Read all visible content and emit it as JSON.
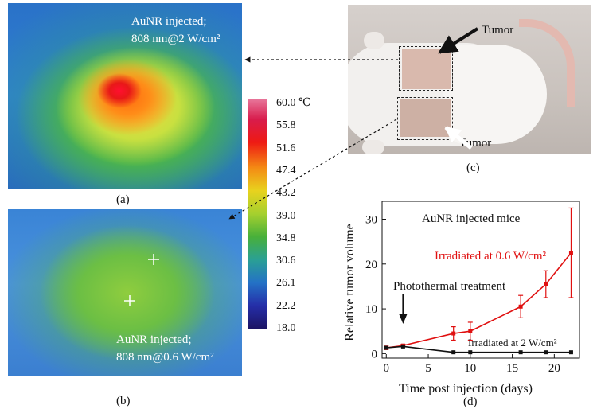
{
  "panel_a": {
    "label": "(a)",
    "text_line1": "AuNR injected;",
    "text_line2": "808 nm@2 W/cm²"
  },
  "panel_b": {
    "label": "(b)",
    "text_line1": "AuNR injected;",
    "text_line2": "808 nm@0.6 W/cm²"
  },
  "colorbar": {
    "ticks": [
      "60.0 ℃",
      "55.8",
      "51.6",
      "47.4",
      "43.2",
      "39.0",
      "34.8",
      "30.6",
      "26.1",
      "22.2",
      "18.0"
    ]
  },
  "panel_c": {
    "label": "(c)",
    "tumor_top": "Tumor",
    "tumor_bottom": "Tumor"
  },
  "panel_d": {
    "label": "(d)"
  },
  "chart_data": {
    "type": "line",
    "title": "AuNR injected mice",
    "xlabel": "Time post injection (days)",
    "ylabel": "Relative tumor volume",
    "xlim": [
      -0.5,
      23
    ],
    "ylim": [
      -1,
      34
    ],
    "xticks": [
      0,
      5,
      10,
      15,
      20
    ],
    "yticks": [
      0,
      10,
      20,
      30
    ],
    "annotation": "Photothermal treatment",
    "annotation_x": 2,
    "series": [
      {
        "name": "Irradiated at 0.6 W/cm²",
        "color": "#e01010",
        "x": [
          0,
          2,
          8,
          10,
          16,
          19,
          22
        ],
        "y": [
          1.3,
          1.8,
          4.5,
          5.0,
          10.5,
          15.5,
          22.5
        ],
        "err": [
          0.4,
          0.3,
          1.5,
          2.0,
          2.5,
          3.0,
          10.0
        ]
      },
      {
        "name": "Irradiated at 2 W/cm²",
        "color": "#111111",
        "x": [
          0,
          2,
          8,
          10,
          16,
          19,
          22
        ],
        "y": [
          1.3,
          1.6,
          0.3,
          0.3,
          0.3,
          0.3,
          0.3
        ]
      }
    ]
  }
}
